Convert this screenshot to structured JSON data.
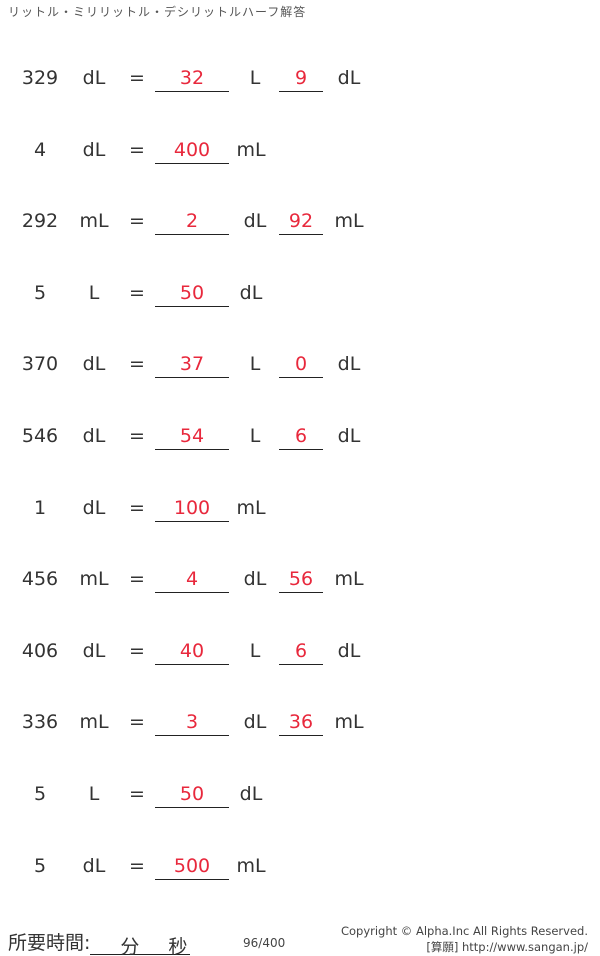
{
  "title": "リットル・ミリリットル・デシリットルハーフ解答",
  "problems": [
    {
      "num": "329",
      "unit": "dL",
      "eq": "=",
      "a1": "32",
      "u2": "L",
      "a2": "9",
      "u3": "dL"
    },
    {
      "num": "4",
      "unit": "dL",
      "eq": "=",
      "a1": "400",
      "u2": "mL"
    },
    {
      "num": "292",
      "unit": "mL",
      "eq": "=",
      "a1": "2",
      "u2": "dL",
      "a2": "92",
      "u3": "mL"
    },
    {
      "num": "5",
      "unit": "L",
      "eq": "=",
      "a1": "50",
      "u2": "dL"
    },
    {
      "num": "370",
      "unit": "dL",
      "eq": "=",
      "a1": "37",
      "u2": "L",
      "a2": "0",
      "u3": "dL"
    },
    {
      "num": "546",
      "unit": "dL",
      "eq": "=",
      "a1": "54",
      "u2": "L",
      "a2": "6",
      "u3": "dL"
    },
    {
      "num": "1",
      "unit": "dL",
      "eq": "=",
      "a1": "100",
      "u2": "mL"
    },
    {
      "num": "456",
      "unit": "mL",
      "eq": "=",
      "a1": "4",
      "u2": "dL",
      "a2": "56",
      "u3": "mL"
    },
    {
      "num": "406",
      "unit": "dL",
      "eq": "=",
      "a1": "40",
      "u2": "L",
      "a2": "6",
      "u3": "dL"
    },
    {
      "num": "336",
      "unit": "mL",
      "eq": "=",
      "a1": "3",
      "u2": "dL",
      "a2": "36",
      "u3": "mL"
    },
    {
      "num": "5",
      "unit": "L",
      "eq": "=",
      "a1": "50",
      "u2": "dL"
    },
    {
      "num": "5",
      "unit": "dL",
      "eq": "=",
      "a1": "500",
      "u2": "mL"
    }
  ],
  "footer": {
    "time_label": "所要時間:",
    "minutes": "分",
    "seconds": "秒",
    "page": "96/400",
    "copyright": "Copyright © Alpha.Inc All Rights Reserved.",
    "site": "[算願] http://www.sangan.jp/"
  },
  "colors": {
    "answer": "#e8283c"
  }
}
